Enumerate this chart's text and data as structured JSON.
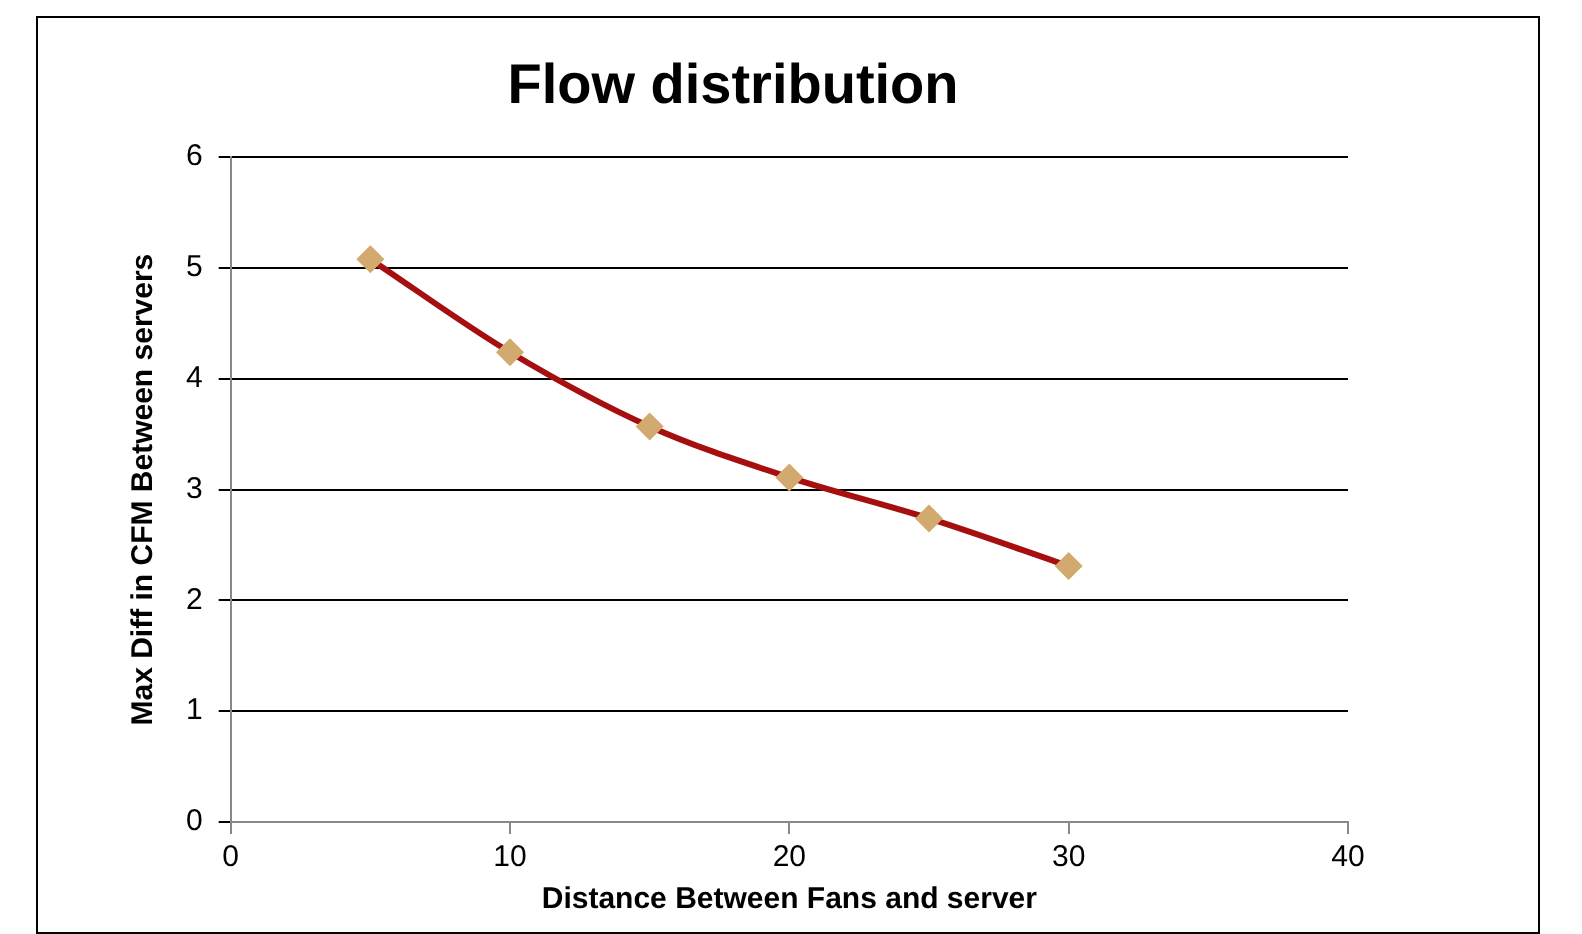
{
  "chart_data": {
    "type": "line",
    "title": "Flow distribution",
    "xlabel": "Distance Between Fans and server",
    "ylabel": "Max Diff in CFM Between servers",
    "x": [
      5,
      10,
      15,
      20,
      25,
      30
    ],
    "series": [
      {
        "color": "#a50f0f",
        "values": [
          5.08,
          4.24,
          3.57,
          3.11,
          2.74,
          2.31
        ]
      }
    ],
    "marker": "diamond",
    "line_style": "solid",
    "grid": "y",
    "legend": false,
    "xlim": [
      0,
      40
    ],
    "xticks": [
      0,
      10,
      20,
      30,
      40
    ],
    "ylim": [
      0,
      6
    ],
    "yticks": [
      0,
      1,
      2,
      3,
      4,
      5,
      6
    ]
  }
}
